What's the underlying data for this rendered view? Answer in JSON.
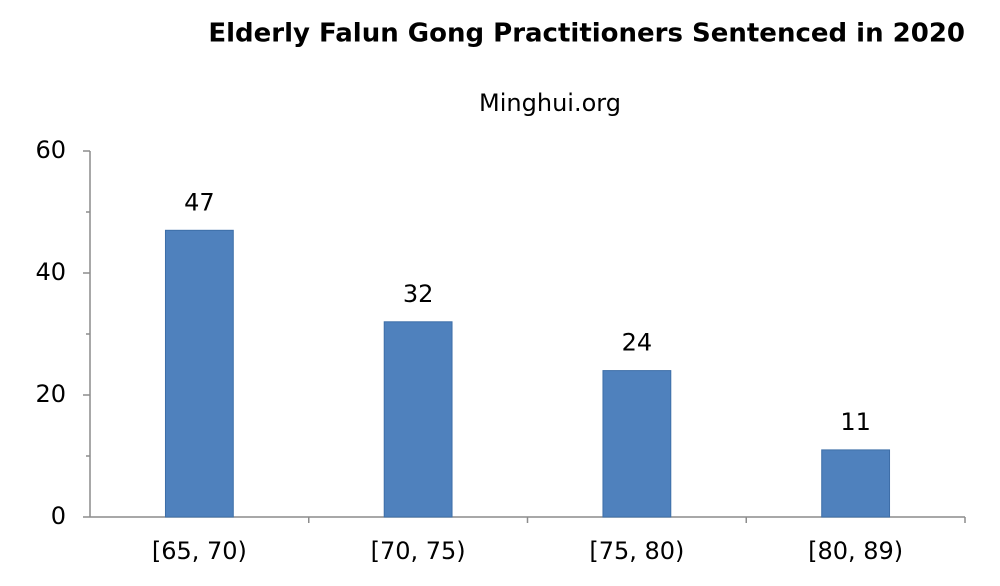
{
  "chart_data": {
    "type": "bar",
    "title": "Elderly Falun Gong Practitioners Sentenced in 2020",
    "subtitle": "Minghui.org",
    "categories": [
      "[65, 70)",
      "[70, 75)",
      "[75, 80)",
      "[80, 89)"
    ],
    "values": [
      47,
      32,
      24,
      11
    ],
    "color": "#4f81bd",
    "ylim": [
      0,
      60
    ],
    "yticks": [
      0,
      20,
      40,
      60
    ],
    "yminorticks": [
      10,
      30,
      50
    ],
    "grid": false
  }
}
